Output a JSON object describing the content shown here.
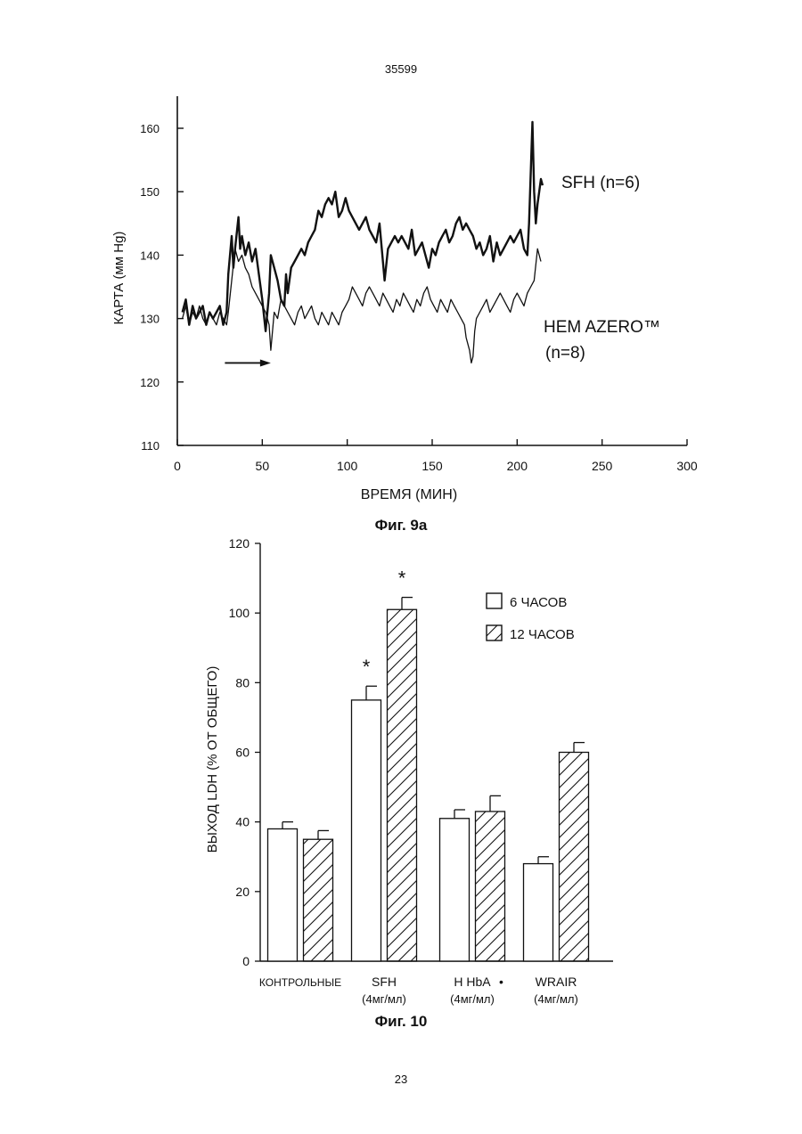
{
  "page": {
    "header": "35599",
    "footer": "23"
  },
  "figures": {
    "fig9a_caption": "Фиг. 9а",
    "fig10_caption": "Фиг. 10"
  },
  "chart_data": [
    {
      "type": "line",
      "title": "",
      "xlabel": "ВРЕМЯ (МИН)",
      "ylabel": "КАРТА (мм Hg)",
      "xlim": [
        0,
        300
      ],
      "ylim": [
        110,
        165
      ],
      "xticks": [
        0,
        50,
        100,
        150,
        200,
        250,
        300
      ],
      "yticks": [
        110,
        120,
        130,
        140,
        150,
        160
      ],
      "grid": false,
      "arrow": {
        "x_start": 28,
        "x_end": 55,
        "y": 123
      },
      "series": [
        {
          "name": "SFH (n=6)",
          "label_lines": [
            "SFH (n=6)"
          ],
          "x": [
            3,
            5,
            7,
            9,
            11,
            13,
            15,
            17,
            19,
            21,
            23,
            25,
            27,
            29,
            30,
            32,
            33,
            34,
            36,
            37,
            38,
            40,
            42,
            44,
            46,
            48,
            50,
            52,
            54,
            55,
            57,
            59,
            61,
            63,
            64,
            65,
            67,
            69,
            71,
            73,
            75,
            77,
            79,
            81,
            83,
            85,
            87,
            89,
            91,
            93,
            95,
            97,
            99,
            101,
            103,
            105,
            107,
            109,
            111,
            113,
            115,
            117,
            119,
            121,
            122,
            124,
            126,
            128,
            130,
            132,
            134,
            136,
            138,
            140,
            142,
            144,
            146,
            148,
            150,
            152,
            154,
            156,
            158,
            160,
            162,
            164,
            166,
            168,
            170,
            172,
            174,
            176,
            178,
            180,
            182,
            184,
            186,
            188,
            190,
            192,
            194,
            196,
            198,
            200,
            202,
            204,
            206,
            207,
            208,
            209,
            210,
            211,
            212,
            213,
            214,
            215
          ],
          "y": [
            131,
            133,
            129,
            132,
            130,
            131,
            132,
            129,
            131,
            130,
            131,
            132,
            129,
            131,
            137,
            143,
            138,
            141,
            146,
            141,
            143,
            140,
            142,
            139,
            141,
            137,
            133,
            128,
            134,
            140,
            138,
            136,
            133,
            132,
            137,
            134,
            138,
            139,
            140,
            141,
            140,
            142,
            143,
            144,
            147,
            146,
            148,
            149,
            148,
            150,
            146,
            147,
            149,
            147,
            146,
            145,
            144,
            145,
            146,
            144,
            143,
            142,
            145,
            139,
            136,
            141,
            142,
            143,
            142,
            143,
            142,
            141,
            144,
            140,
            141,
            142,
            140,
            138,
            141,
            140,
            142,
            143,
            144,
            142,
            143,
            145,
            146,
            144,
            145,
            144,
            143,
            141,
            142,
            140,
            141,
            143,
            139,
            142,
            140,
            141,
            142,
            143,
            142,
            143,
            144,
            141,
            140,
            145,
            153,
            161,
            150,
            145,
            148,
            150,
            152,
            151
          ]
        },
        {
          "name": "HEM AZERO™ (n=8)",
          "label_lines": [
            "HEM AZERO™",
            "(n=8)"
          ],
          "x": [
            3,
            5,
            7,
            9,
            11,
            13,
            15,
            17,
            19,
            21,
            23,
            25,
            27,
            29,
            30,
            32,
            34,
            36,
            38,
            40,
            42,
            44,
            46,
            48,
            50,
            52,
            54,
            55,
            57,
            59,
            61,
            63,
            65,
            67,
            69,
            71,
            73,
            75,
            77,
            79,
            81,
            83,
            85,
            87,
            89,
            91,
            93,
            95,
            97,
            99,
            101,
            103,
            105,
            107,
            109,
            111,
            113,
            115,
            117,
            119,
            121,
            123,
            125,
            127,
            129,
            131,
            133,
            135,
            137,
            139,
            141,
            143,
            145,
            147,
            149,
            151,
            153,
            155,
            157,
            159,
            161,
            163,
            165,
            167,
            169,
            170,
            172,
            173,
            174,
            175,
            176,
            178,
            180,
            182,
            184,
            186,
            188,
            190,
            192,
            194,
            196,
            198,
            200,
            202,
            204,
            206,
            208,
            210,
            212,
            214
          ],
          "y": [
            130,
            132,
            129,
            131,
            130,
            132,
            130,
            129,
            131,
            130,
            129,
            131,
            130,
            129,
            131,
            136,
            141,
            139,
            140,
            138,
            137,
            135,
            134,
            133,
            132,
            131,
            129,
            125,
            131,
            130,
            133,
            132,
            131,
            130,
            129,
            131,
            132,
            130,
            131,
            132,
            130,
            129,
            131,
            130,
            129,
            131,
            130,
            129,
            131,
            132,
            133,
            135,
            134,
            133,
            132,
            134,
            135,
            134,
            133,
            132,
            134,
            133,
            132,
            131,
            133,
            132,
            134,
            133,
            132,
            131,
            133,
            132,
            134,
            135,
            133,
            132,
            131,
            133,
            132,
            131,
            133,
            132,
            131,
            130,
            129,
            127,
            125,
            123,
            124,
            128,
            130,
            131,
            132,
            133,
            131,
            132,
            133,
            134,
            133,
            132,
            131,
            133,
            134,
            133,
            132,
            134,
            135,
            136,
            141,
            139
          ]
        }
      ]
    },
    {
      "type": "bar",
      "title": "",
      "xlabel": "",
      "ylabel": "ВЫХОД LDH (% ОТ ОБЩЕГО)",
      "ylim": [
        0,
        120
      ],
      "yticks": [
        0,
        20,
        40,
        60,
        80,
        100,
        120
      ],
      "grid": false,
      "legend_position": "top-right",
      "categories": [
        "КОНТРОЛЬНЫЕ",
        "SFH",
        "H HbA",
        "WRAIR"
      ],
      "category_sublabels": [
        "",
        "(4мг/мл)",
        "(4мг/мл)",
        "(4мг/мл)"
      ],
      "category_marks": [
        "",
        "",
        "•",
        ""
      ],
      "series": [
        {
          "name": "6 ЧАСОВ",
          "pattern": "open",
          "values": [
            38,
            75,
            41,
            28
          ],
          "errors": [
            2,
            4,
            2.5,
            2
          ],
          "significance": [
            "",
            "*",
            "",
            ""
          ]
        },
        {
          "name": "12 ЧАСОВ",
          "pattern": "hatched",
          "values": [
            35,
            101,
            43,
            60
          ],
          "errors": [
            2.5,
            3.5,
            4.5,
            2.8
          ],
          "significance": [
            "",
            "*",
            "",
            ""
          ]
        }
      ]
    }
  ]
}
